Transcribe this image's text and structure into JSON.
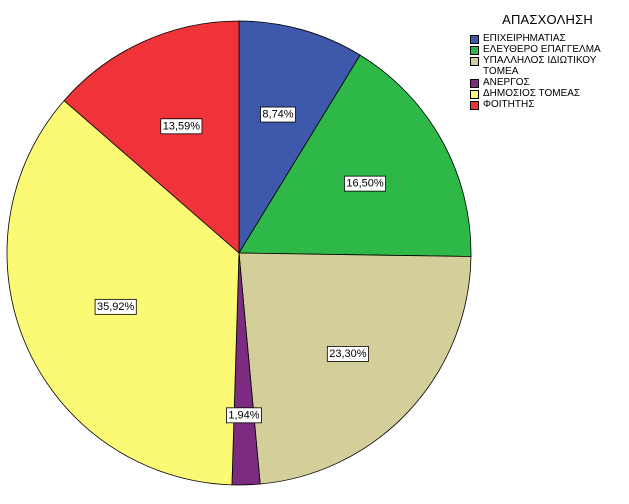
{
  "chart_data": {
    "type": "pie",
    "legend_title": "ΑΠΑΣΧΟΛΗΣΗ",
    "legend_position": "top-right",
    "slices": [
      {
        "name": "ΕΠΙΧΕΙΡΗΜΑΤΙΑΣ",
        "value": 8.74,
        "label": "8,74%",
        "color": "#3E58AC"
      },
      {
        "name": "ΕΛΕΥΘΕΡΟ ΕΠΑΓΓΕΛΜΑ",
        "value": 16.5,
        "label": "16,50%",
        "color": "#2EB848"
      },
      {
        "name": "ΥΠΑΛΛΗΛΟΣ ΙΔΙΩΤΙΚΟΥ ΤΟΜΕΑ",
        "value": 23.3,
        "label": "23,30%",
        "color": "#D4CE9B"
      },
      {
        "name": "ΑΝΕΡΓΟΣ",
        "value": 1.94,
        "label": "1,94%",
        "color": "#7B2B80"
      },
      {
        "name": "ΔΗΜΟΣΙΟΣ ΤΟΜΕΑΣ",
        "value": 35.92,
        "label": "35,92%",
        "color": "#FCF975"
      },
      {
        "name": "ΦΟΙΤΗΤΗΣ",
        "value": 13.59,
        "label": "13,59%",
        "color": "#EF3338"
      }
    ]
  }
}
